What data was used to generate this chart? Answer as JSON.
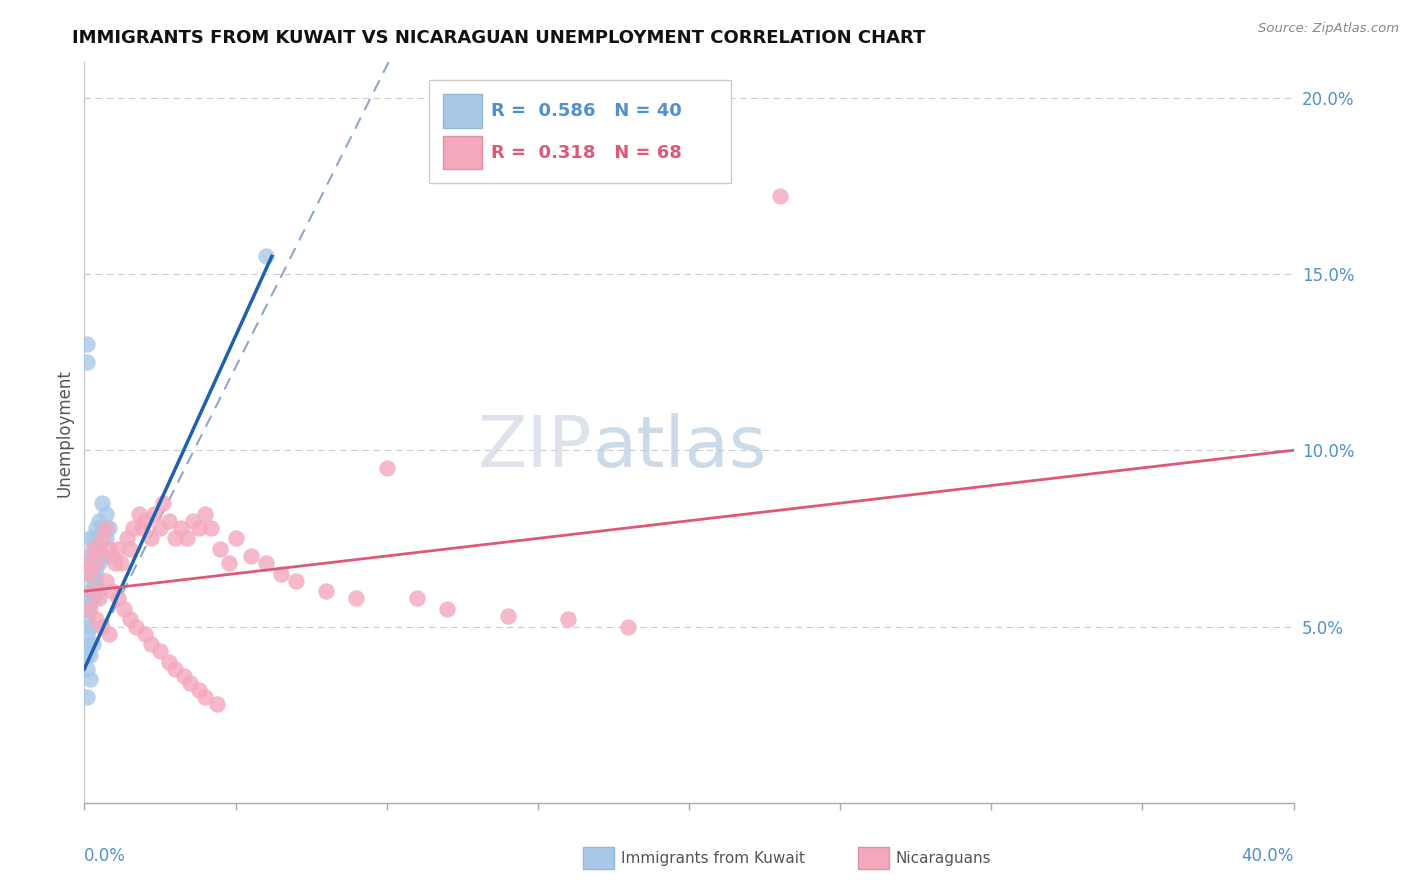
{
  "title": "IMMIGRANTS FROM KUWAIT VS NICARAGUAN UNEMPLOYMENT CORRELATION CHART",
  "source": "Source: ZipAtlas.com",
  "ylabel": "Unemployment",
  "xlim": [
    0.0,
    0.4
  ],
  "ylim": [
    0.0,
    0.21
  ],
  "legend1_r": "0.586",
  "legend1_n": "40",
  "legend2_r": "0.318",
  "legend2_n": "68",
  "blue_color": "#a8c8e8",
  "pink_color": "#f4a8bc",
  "line_blue": "#2060b0",
  "line_pink": "#e05878",
  "line_dashed_color": "#90a8c8",
  "watermark_zip": "ZIP",
  "watermark_atlas": "atlas",
  "blue_x": [
    0.001,
    0.001,
    0.002,
    0.002,
    0.002,
    0.003,
    0.003,
    0.003,
    0.003,
    0.004,
    0.004,
    0.004,
    0.005,
    0.005,
    0.005,
    0.006,
    0.006,
    0.007,
    0.007,
    0.008,
    0.001,
    0.001,
    0.002,
    0.002,
    0.003,
    0.003,
    0.004,
    0.004,
    0.005,
    0.006,
    0.001,
    0.001,
    0.002,
    0.001,
    0.001,
    0.002,
    0.003,
    0.002,
    0.001,
    0.06
  ],
  "blue_y": [
    0.13,
    0.125,
    0.075,
    0.07,
    0.065,
    0.075,
    0.068,
    0.065,
    0.06,
    0.078,
    0.072,
    0.068,
    0.08,
    0.073,
    0.068,
    0.085,
    0.078,
    0.082,
    0.075,
    0.078,
    0.055,
    0.052,
    0.06,
    0.057,
    0.063,
    0.058,
    0.065,
    0.062,
    0.06,
    0.07,
    0.048,
    0.045,
    0.05,
    0.042,
    0.038,
    0.042,
    0.045,
    0.035,
    0.03,
    0.155
  ],
  "pink_x": [
    0.001,
    0.002,
    0.003,
    0.004,
    0.005,
    0.006,
    0.007,
    0.008,
    0.009,
    0.01,
    0.011,
    0.012,
    0.014,
    0.015,
    0.016,
    0.018,
    0.019,
    0.02,
    0.022,
    0.023,
    0.025,
    0.026,
    0.028,
    0.03,
    0.032,
    0.034,
    0.036,
    0.038,
    0.04,
    0.042,
    0.045,
    0.048,
    0.05,
    0.055,
    0.06,
    0.065,
    0.07,
    0.08,
    0.09,
    0.1,
    0.11,
    0.12,
    0.14,
    0.16,
    0.18,
    0.23,
    0.003,
    0.005,
    0.007,
    0.009,
    0.011,
    0.013,
    0.015,
    0.017,
    0.02,
    0.022,
    0.025,
    0.028,
    0.03,
    0.033,
    0.035,
    0.038,
    0.04,
    0.044,
    0.002,
    0.004,
    0.006,
    0.008
  ],
  "pink_y": [
    0.068,
    0.065,
    0.072,
    0.068,
    0.072,
    0.075,
    0.078,
    0.072,
    0.07,
    0.068,
    0.072,
    0.068,
    0.075,
    0.072,
    0.078,
    0.082,
    0.078,
    0.08,
    0.075,
    0.082,
    0.078,
    0.085,
    0.08,
    0.075,
    0.078,
    0.075,
    0.08,
    0.078,
    0.082,
    0.078,
    0.072,
    0.068,
    0.075,
    0.07,
    0.068,
    0.065,
    0.063,
    0.06,
    0.058,
    0.095,
    0.058,
    0.055,
    0.053,
    0.052,
    0.05,
    0.172,
    0.06,
    0.058,
    0.063,
    0.06,
    0.058,
    0.055,
    0.052,
    0.05,
    0.048,
    0.045,
    0.043,
    0.04,
    0.038,
    0.036,
    0.034,
    0.032,
    0.03,
    0.028,
    0.055,
    0.052,
    0.05,
    0.048
  ]
}
